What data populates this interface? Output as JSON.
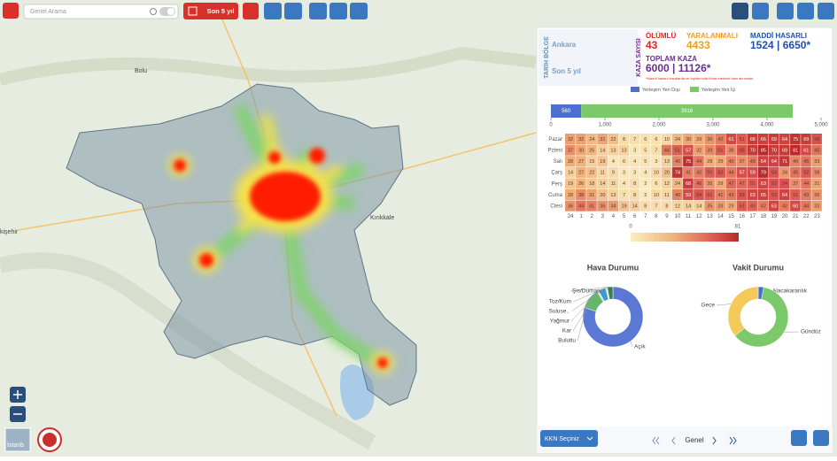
{
  "toolbar": {
    "search_placeholder": "Genel Arama",
    "period_button": "Son 5 yıl"
  },
  "map": {
    "labels": [
      "Bolu",
      "Kırıkkale",
      "kişehir"
    ],
    "minimap_label": "İstanb"
  },
  "panel": {
    "region_header": "TARİH BÖLGE",
    "region": "Ankara",
    "period": "Son 5 yıl",
    "count_header": "KAZA SAYISI",
    "fatal_label": "ÖLÜMLÜ",
    "fatal_value": "43",
    "injury_label": "YARALANMALI",
    "injury_value": "4433",
    "damage_label": "MADDİ HASARLI",
    "damage_value": "1524 | 6650*",
    "total_label": "TOPLAM KAZA",
    "total_value": "6000 | 11126*",
    "note": "*Maddi hasarlı kazalarda ve toplamında ihbar merkezi bazı alınmıştır",
    "kkn_button": "KKN Seçiniz",
    "nav_label": "Genel"
  },
  "chart_data": [
    {
      "type": "bar",
      "horizontal": true,
      "stacked": true,
      "series": [
        {
          "name": "Yerleşim Yeri Dışı",
          "color": "#4e6fd1",
          "values": [
            560
          ]
        },
        {
          "name": "Yerleşim Yeri İçi",
          "color": "#7cc96b",
          "values": [
            3916
          ]
        }
      ],
      "xlim": [
        0,
        5000
      ],
      "xticks": [
        0,
        {
          "value": 1000,
          "label": "1,000"
        },
        {
          "value": 2000,
          "label": "2,000"
        },
        {
          "value": 3000,
          "label": "3,000"
        },
        {
          "value": 4000,
          "label": "4,000"
        },
        {
          "value": 5000,
          "label": "5,000"
        }
      ]
    },
    {
      "type": "heatmap",
      "categories": [
        "24",
        "1",
        "2",
        "3",
        "4",
        "5",
        "6",
        "7",
        "8",
        "9",
        "10",
        "11",
        "12",
        "13",
        "14",
        "15",
        "16",
        "17",
        "18",
        "19",
        "20",
        "21",
        "22",
        "23"
      ],
      "rows": [
        "Pazar",
        "Pztesi",
        "Salı",
        "Çarş",
        "Perş",
        "Cuma",
        "Ctesi"
      ],
      "values": [
        [
          32,
          32,
          24,
          31,
          22,
          8,
          7,
          6,
          6,
          10,
          24,
          30,
          29,
          36,
          42,
          61,
          51,
          68,
          66,
          69,
          64,
          75,
          69,
          56
        ],
        [
          37,
          30,
          25,
          14,
          13,
          13,
          3,
          5,
          7,
          44,
          51,
          57,
          32,
          39,
          51,
          38,
          55,
          70,
          85,
          70,
          69,
          81,
          61,
          45
        ],
        [
          28,
          27,
          15,
          19,
          4,
          6,
          4,
          5,
          3,
          13,
          40,
          75,
          44,
          28,
          29,
          40,
          37,
          43,
          64,
          64,
          71,
          40,
          45,
          33
        ],
        [
          14,
          27,
          22,
          11,
          9,
          3,
          3,
          4,
          10,
          20,
          74,
          41,
          42,
          50,
          52,
          44,
          57,
          59,
          79,
          53,
          34,
          45,
          52,
          38
        ],
        [
          19,
          26,
          18,
          14,
          11,
          4,
          8,
          2,
          6,
          12,
          24,
          68,
          46,
          35,
          29,
          47,
          47,
          51,
          63,
          53,
          54,
          37,
          44,
          31
        ],
        [
          28,
          38,
          31,
          20,
          13,
          7,
          8,
          2,
          10,
          11,
          40,
          59,
          54,
          51,
          41,
          43,
          53,
          63,
          65,
          53,
          64,
          51,
          43,
          36
        ],
        [
          36,
          44,
          41,
          36,
          34,
          19,
          14,
          8,
          7,
          8,
          12,
          14,
          14,
          35,
          33,
          29,
          51,
          49,
          42,
          63,
          42,
          60,
          44,
          33
        ]
      ],
      "clim": [
        0,
        81
      ],
      "colors": [
        "#fbeec0",
        "#f0b27a",
        "#d9534f",
        "#b52b2b"
      ]
    },
    {
      "type": "pie",
      "donut": true,
      "title": "Hava Durumu",
      "categories": [
        "Açık",
        "Bulutlu",
        "Kar",
        "Yağmur",
        "Suluse..",
        "Toz/Kum",
        "Şis/Duman"
      ],
      "values": [
        80,
        11,
        1,
        4,
        0.5,
        0.5,
        3
      ],
      "colors": [
        "#5b78d4",
        "#63b96a",
        "#dddddd",
        "#3a9bd1",
        "#99d6e0",
        "#aaaaaa",
        "#3f7f4a"
      ]
    },
    {
      "type": "pie",
      "donut": true,
      "title": "Vakit Durumu",
      "categories": [
        "Alacakaranlık",
        "Gündüz",
        "Gece"
      ],
      "values": [
        3,
        61,
        36
      ],
      "colors": [
        "#4a6fd0",
        "#7cc96b",
        "#f5c85a"
      ]
    }
  ]
}
